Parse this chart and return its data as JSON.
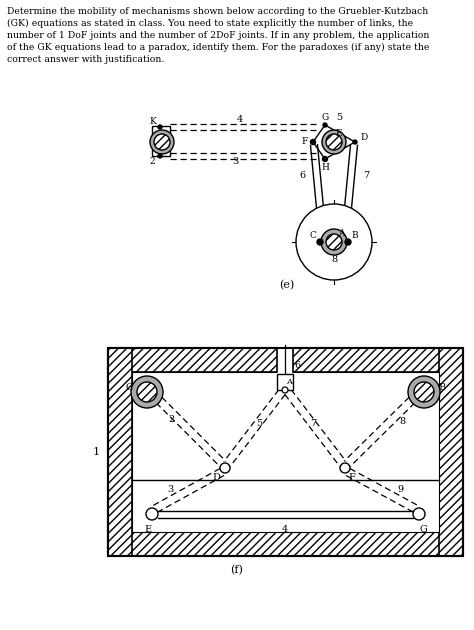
{
  "title_text": "Determine the mobility of mechanisms shown below according to the Gruebler-Kutzbach\n(GK) equations as stated in class. You need to state explicitly the number of links, the\nnumber of 1 DoF joints and the number of 2DoF joints. If in any problem, the application\nof the GK equations lead to a paradox, identify them. For the paradoxes (if any) state the\ncorrect answer with justification.",
  "label_e": "(e)",
  "label_f": "(f)",
  "bg_color": "#ffffff"
}
